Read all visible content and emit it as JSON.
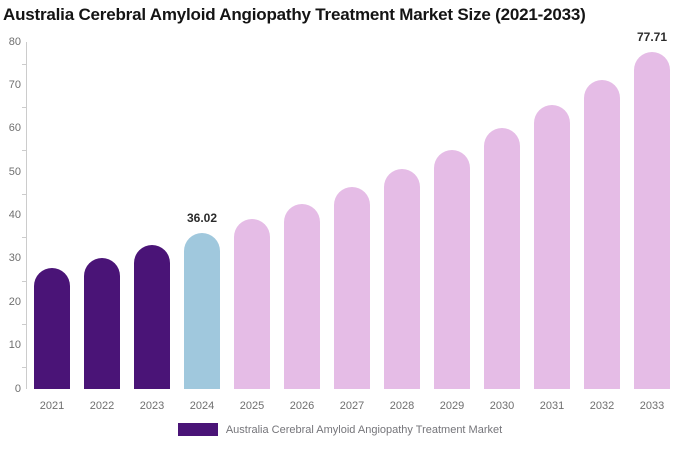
{
  "title": "Australia Cerebral Amyloid Angiopathy Treatment Market Size (2021-2033)",
  "legend": {
    "label": "Australia Cerebral Amyloid Angiopathy Treatment Market"
  },
  "colors": {
    "historical_bar": "#4A1477",
    "base_year_bar": "#A0C8DD",
    "forecast_bar": "#E5BCE6",
    "axis": "#CCCCCC",
    "tick_label": "#6F6F6F",
    "value_label": "#2B2B2B",
    "title_text": "#141414",
    "legend_text": "#75757A"
  },
  "chart_data": {
    "type": "bar",
    "title": "Australia Cerebral Amyloid Angiopathy Treatment Market Size (2021-2033)",
    "series_name": "Australia Cerebral Amyloid Angiopathy Treatment Market",
    "categories": [
      "2021",
      "2022",
      "2023",
      "2024",
      "2025",
      "2026",
      "2027",
      "2028",
      "2029",
      "2030",
      "2031",
      "2032",
      "2033"
    ],
    "values": [
      27.8,
      30.3,
      33.1,
      36.02,
      39.23,
      42.73,
      46.55,
      50.7,
      55.22,
      60.14,
      65.51,
      71.35,
      77.71
    ],
    "bar_color_roles": [
      "historical",
      "historical",
      "historical",
      "base_year",
      "forecast",
      "forecast",
      "forecast",
      "forecast",
      "forecast",
      "forecast",
      "forecast",
      "forecast",
      "forecast"
    ],
    "data_labels": [
      {
        "category": "2024",
        "text": "36.02"
      },
      {
        "category": "2033",
        "text": "77.71"
      }
    ],
    "xlabel": "",
    "ylabel": "",
    "ylim": [
      0,
      80
    ],
    "y_tick_labels": [
      0,
      10,
      20,
      30,
      40,
      50,
      60,
      70,
      80
    ],
    "y_minor_ticks": [
      5,
      15,
      25,
      35,
      45,
      55,
      65,
      75
    ],
    "grid": false,
    "legend_position": "bottom"
  }
}
